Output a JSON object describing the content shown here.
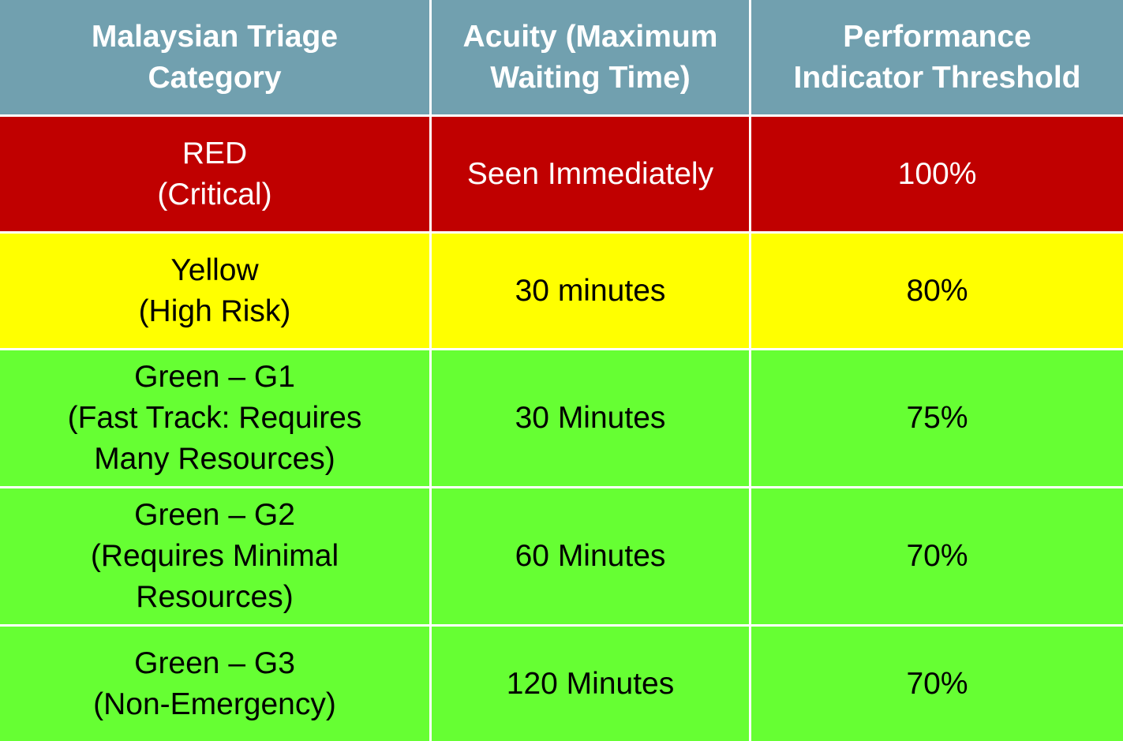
{
  "table": {
    "header": [
      [
        "Malaysian Triage",
        "Category"
      ],
      [
        "Acuity (Maximum",
        "Waiting Time)"
      ],
      [
        "Performance",
        "Indicator Threshold"
      ]
    ],
    "rows": [
      [
        [
          "RED",
          "(Critical)"
        ],
        [
          "Seen Immediately"
        ],
        [
          "100%"
        ]
      ],
      [
        [
          "Yellow",
          "(High Risk)"
        ],
        [
          "30 minutes"
        ],
        [
          "80%"
        ]
      ],
      [
        [
          "Green – G1",
          "(Fast Track: Requires",
          "Many Resources)"
        ],
        [
          "30 Minutes"
        ],
        [
          "75%"
        ]
      ],
      [
        [
          "Green – G2",
          "(Requires Minimal",
          "Resources)"
        ],
        [
          "60 Minutes"
        ],
        [
          "70%"
        ]
      ],
      [
        [
          "Green – G3",
          "(Non-Emergency)"
        ],
        [
          "120 Minutes"
        ],
        [
          "70%"
        ]
      ]
    ]
  }
}
